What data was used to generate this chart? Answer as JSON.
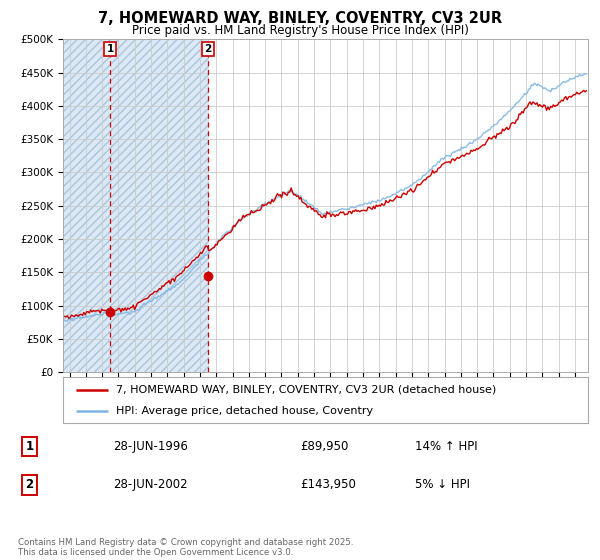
{
  "title": "7, HOMEWARD WAY, BINLEY, COVENTRY, CV3 2UR",
  "subtitle": "Price paid vs. HM Land Registry's House Price Index (HPI)",
  "ylim": [
    0,
    500000
  ],
  "ytick_labels": [
    "£0",
    "£50K",
    "£100K",
    "£150K",
    "£200K",
    "£250K",
    "£300K",
    "£350K",
    "£400K",
    "£450K",
    "£500K"
  ],
  "xlim_start": 1993.6,
  "xlim_end": 2025.8,
  "hatch_region1_end": 1996.6,
  "hatch_region2_start": 1996.6,
  "hatch_region2_end": 2002.55,
  "hatch_color": "#dce9f5",
  "hatch_pattern": "////",
  "grid_color": "#cccccc",
  "hpi_color": "#7eb6e3",
  "price_color": "#cc0000",
  "sale1_date": 1996.49,
  "sale1_price": 89950,
  "sale1_label": "1",
  "sale2_date": 2002.49,
  "sale2_price": 143950,
  "sale2_label": "2",
  "legend_line1": "7, HOMEWARD WAY, BINLEY, COVENTRY, CV3 2UR (detached house)",
  "legend_line2": "HPI: Average price, detached house, Coventry",
  "table_row1": [
    "1",
    "28-JUN-1996",
    "£89,950",
    "14% ↑ HPI"
  ],
  "table_row2": [
    "2",
    "28-JUN-2002",
    "£143,950",
    "5% ↓ HPI"
  ],
  "footnote": "Contains HM Land Registry data © Crown copyright and database right 2025.\nThis data is licensed under the Open Government Licence v3.0.",
  "title_fontsize": 10.5,
  "subtitle_fontsize": 8.5,
  "tick_fontsize": 7.5,
  "legend_fontsize": 8
}
